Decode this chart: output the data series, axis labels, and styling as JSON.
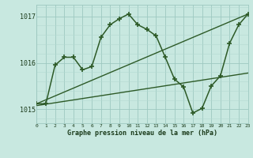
{
  "title": "Graphe pression niveau de la mer (hPa)",
  "xlim": [
    0,
    23
  ],
  "ylim": [
    1014.7,
    1017.25
  ],
  "yticks": [
    1015,
    1016,
    1017
  ],
  "xticks": [
    0,
    1,
    2,
    3,
    4,
    5,
    6,
    7,
    8,
    9,
    10,
    11,
    12,
    13,
    14,
    15,
    16,
    17,
    18,
    19,
    20,
    21,
    22,
    23
  ],
  "bg_color": "#c8e8e0",
  "grid_major_color": "#9dc8c0",
  "grid_minor_color": "#b4d8d0",
  "line_color": "#2d5a27",
  "series": [
    {
      "x": [
        0,
        1,
        2,
        3,
        4,
        5,
        6,
        7,
        8,
        9,
        10,
        11,
        12,
        13,
        14,
        15,
        16,
        17,
        18,
        19,
        20,
        21,
        22,
        23
      ],
      "y": [
        1015.12,
        1015.12,
        1015.95,
        1016.12,
        1016.12,
        1015.85,
        1015.92,
        1016.55,
        1016.82,
        1016.95,
        1017.05,
        1016.82,
        1016.72,
        1016.58,
        1016.12,
        1015.65,
        1015.48,
        1014.92,
        1015.02,
        1015.5,
        1015.72,
        1016.42,
        1016.82,
        1017.05
      ],
      "marker": "+",
      "linewidth": 1.1,
      "markersize": 4.5,
      "markeredgewidth": 1.2,
      "zorder": 3
    },
    {
      "x": [
        0,
        23
      ],
      "y": [
        1015.12,
        1017.05
      ],
      "marker": null,
      "linewidth": 1.0,
      "markersize": 0,
      "zorder": 2
    },
    {
      "x": [
        0,
        23
      ],
      "y": [
        1015.08,
        1015.78
      ],
      "marker": null,
      "linewidth": 1.0,
      "markersize": 0,
      "zorder": 2
    }
  ]
}
